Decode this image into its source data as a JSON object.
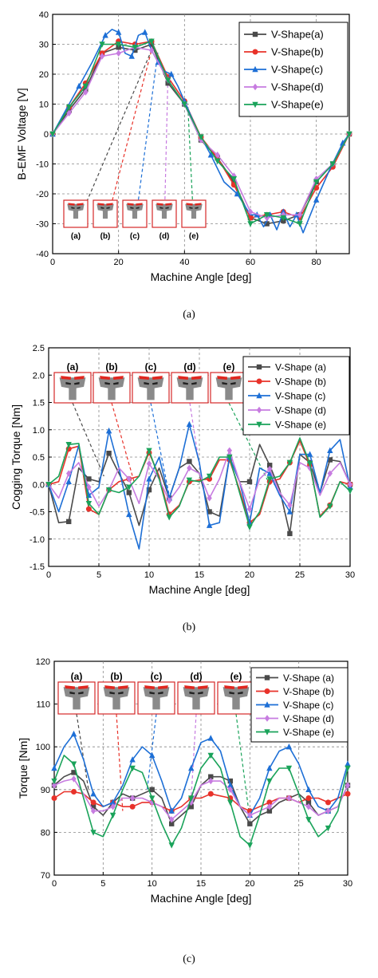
{
  "colors": {
    "a": "#4a4a4a",
    "b": "#e8322a",
    "c": "#1d6fd6",
    "d": "#c77ce0",
    "e": "#1aa35a",
    "inset_border": "#d62828",
    "rotor": "#8a8a8a",
    "magnet": "#e0261f"
  },
  "chart_data": [
    {
      "type": "line",
      "caption": "(a)",
      "xlabel": "Machine Angle [deg]",
      "ylabel": "B-EMF Voltage [V]",
      "xlim": [
        0,
        90
      ],
      "ylim": [
        -40,
        40
      ],
      "xticks": [
        0,
        20,
        40,
        60,
        80
      ],
      "yticks": [
        -40,
        -30,
        -20,
        -10,
        0,
        10,
        20,
        30,
        40
      ],
      "grid": true,
      "legend_position": "top-right",
      "legend": [
        "V-Shape(a)",
        "V-Shape(b)",
        "V-Shape(c)",
        "V-Shape(d)",
        "V-Shape(e)"
      ],
      "inset_labels": [
        "(a)",
        "(b)",
        "(c)",
        "(d)",
        "(e)"
      ],
      "series": [
        {
          "name": "V-Shape(a)",
          "x": [
            0,
            5,
            10,
            15,
            20,
            25,
            30,
            35,
            40,
            45,
            50,
            55,
            60,
            65,
            70,
            75,
            80,
            85,
            90
          ],
          "y": [
            0,
            8,
            15,
            27,
            29,
            28,
            30,
            17,
            10,
            -2,
            -8,
            -16,
            -28,
            -30,
            -29,
            -27,
            -16,
            -10,
            0
          ]
        },
        {
          "name": "V-Shape(b)",
          "x": [
            0,
            5,
            10,
            15,
            20,
            25,
            30,
            35,
            40,
            45,
            50,
            55,
            60,
            65,
            70,
            75,
            80,
            85,
            90
          ],
          "y": [
            0,
            9,
            17,
            27,
            31,
            30,
            31,
            19,
            11,
            -1,
            -8,
            -17,
            -28,
            -27,
            -26,
            -28,
            -18,
            -11,
            0
          ]
        },
        {
          "name": "V-Shape(c)",
          "x": [
            0,
            4,
            8,
            12,
            16,
            18,
            20,
            22,
            24,
            26,
            28,
            30,
            32,
            34,
            36,
            38,
            40,
            44,
            48,
            52,
            56,
            60,
            62,
            64,
            66,
            68,
            70,
            72,
            74,
            76,
            80,
            84,
            88,
            90
          ],
          "y": [
            0,
            8,
            16,
            24,
            33,
            35,
            34,
            27,
            26,
            33,
            34,
            28,
            24,
            21,
            20,
            16,
            11,
            1,
            -7,
            -16,
            -20,
            -27,
            -27,
            -31,
            -27,
            -32,
            -26,
            -31,
            -27,
            -33,
            -22,
            -12,
            -3,
            0
          ]
        },
        {
          "name": "V-Shape(d)",
          "x": [
            0,
            5,
            10,
            15,
            20,
            25,
            30,
            35,
            40,
            45,
            50,
            55,
            60,
            65,
            70,
            75,
            80,
            85,
            90
          ],
          "y": [
            0,
            7,
            14,
            26,
            27,
            29,
            28,
            18,
            10,
            -2,
            -7,
            -14,
            -26,
            -28,
            -27,
            -27,
            -15,
            -10,
            0
          ]
        },
        {
          "name": "V-Shape(e)",
          "x": [
            0,
            5,
            10,
            15,
            20,
            25,
            30,
            35,
            40,
            45,
            50,
            55,
            60,
            65,
            70,
            75,
            80,
            85,
            90
          ],
          "y": [
            0,
            9,
            16,
            30,
            30,
            29,
            31,
            18,
            10,
            -1,
            -9,
            -15,
            -30,
            -27,
            -28,
            -30,
            -16,
            -10,
            0
          ]
        }
      ]
    },
    {
      "type": "line",
      "caption": "(b)",
      "xlabel": "Machine Angle [deg]",
      "ylabel": "Cogging Torque [Nm]",
      "xlim": [
        0,
        30
      ],
      "ylim": [
        -1.5,
        2.5
      ],
      "xticks": [
        0,
        5,
        10,
        15,
        20,
        25,
        30
      ],
      "yticks": [
        -1.5,
        -1.0,
        -0.5,
        0.0,
        0.5,
        1.0,
        1.5,
        2.0,
        2.5
      ],
      "grid": true,
      "legend_position": "right",
      "legend": [
        "V-Shape (a)",
        "V-Shape (b)",
        "V-Shape (c)",
        "V-Shape (d)",
        "V-Shape (e)"
      ],
      "inset_labels": [
        "(a)",
        "(b)",
        "(c)",
        "(d)",
        "(e)"
      ],
      "series": [
        {
          "name": "V-Shape (a)",
          "x": [
            0,
            1,
            2,
            3,
            4,
            5,
            6,
            7,
            8,
            9,
            10,
            11,
            12,
            13,
            14,
            15,
            16,
            17,
            18,
            19,
            20,
            21,
            22,
            23,
            24,
            25,
            26,
            27,
            28,
            29,
            30
          ],
          "y": [
            0,
            -0.7,
            -0.68,
            0.3,
            0.1,
            0.05,
            0.57,
            0.2,
            -0.15,
            -0.75,
            -0.1,
            0.3,
            -0.25,
            0.3,
            0.42,
            0.2,
            -0.5,
            -0.58,
            0.5,
            0.05,
            0.05,
            0.73,
            0.35,
            -0.1,
            -0.9,
            0.55,
            0.4,
            -0.15,
            0.45,
            0.42,
            0
          ]
        },
        {
          "name": "V-Shape (b)",
          "x": [
            0,
            1,
            2,
            3,
            4,
            5,
            6,
            7,
            8,
            9,
            10,
            11,
            12,
            13,
            14,
            15,
            16,
            17,
            18,
            19,
            20,
            21,
            22,
            23,
            24,
            25,
            26,
            27,
            28,
            29,
            30
          ],
          "y": [
            0,
            0.05,
            0.65,
            0.7,
            -0.45,
            -0.55,
            -0.1,
            0.05,
            0.1,
            0.15,
            0.58,
            0.15,
            -0.55,
            -0.38,
            0.05,
            0.08,
            0.1,
            0.45,
            0.45,
            -0.1,
            -0.7,
            -0.55,
            0.05,
            0.1,
            0.4,
            0.8,
            0.35,
            -0.58,
            -0.38,
            0.05,
            0
          ]
        },
        {
          "name": "V-Shape (c)",
          "x": [
            0,
            1,
            2,
            3,
            4,
            5,
            6,
            7,
            8,
            9,
            10,
            11,
            12,
            13,
            14,
            15,
            16,
            17,
            18,
            19,
            20,
            21,
            22,
            23,
            24,
            25,
            26,
            27,
            28,
            29,
            30
          ],
          "y": [
            0,
            -0.5,
            0.05,
            0.72,
            -0.2,
            -0.05,
            0.98,
            0.3,
            -0.55,
            -1.18,
            0.1,
            0.5,
            -0.25,
            0.3,
            1.1,
            0.4,
            -0.75,
            -0.7,
            0.5,
            0.05,
            -0.7,
            0.3,
            0.2,
            -0.2,
            -0.5,
            0.55,
            0.55,
            -0.15,
            0.62,
            0.82,
            -0.05
          ]
        },
        {
          "name": "V-Shape (d)",
          "x": [
            0,
            1,
            2,
            3,
            4,
            5,
            6,
            7,
            8,
            9,
            10,
            11,
            12,
            13,
            14,
            15,
            16,
            17,
            18,
            19,
            20,
            21,
            22,
            23,
            24,
            25,
            26,
            27,
            28,
            29,
            30
          ],
          "y": [
            0,
            -0.25,
            0.2,
            0.4,
            -0.05,
            -0.4,
            -0.1,
            0.3,
            0.1,
            -0.35,
            0.38,
            0.1,
            -0.3,
            -0.05,
            0.3,
            0.2,
            -0.25,
            0.1,
            0.62,
            0.05,
            -0.45,
            0.1,
            0.28,
            -0.15,
            -0.38,
            0.4,
            0.3,
            -0.2,
            0.2,
            0.4,
            0
          ]
        },
        {
          "name": "V-Shape (e)",
          "x": [
            0,
            1,
            2,
            3,
            4,
            5,
            6,
            7,
            8,
            9,
            10,
            11,
            12,
            13,
            14,
            15,
            16,
            17,
            18,
            19,
            20,
            21,
            22,
            23,
            24,
            25,
            26,
            27,
            28,
            29,
            30
          ],
          "y": [
            0,
            0.15,
            0.73,
            0.75,
            -0.35,
            -0.55,
            -0.1,
            -0.15,
            -0.05,
            0.15,
            0.62,
            0.1,
            -0.6,
            -0.4,
            0.08,
            0.05,
            0.15,
            0.5,
            0.5,
            -0.15,
            -0.78,
            -0.5,
            0.1,
            0.15,
            0.4,
            0.85,
            0.38,
            -0.6,
            -0.4,
            0.05,
            -0.12
          ]
        }
      ]
    },
    {
      "type": "line",
      "caption": "(c)",
      "xlabel": "Machine Angle [deg]",
      "ylabel": "Torque [Nm]",
      "xlim": [
        0,
        30
      ],
      "ylim": [
        70,
        120
      ],
      "xticks": [
        0,
        5,
        10,
        15,
        20,
        25,
        30
      ],
      "yticks": [
        70,
        80,
        90,
        100,
        110,
        120
      ],
      "grid": true,
      "legend_position": "right",
      "legend": [
        "V-Shape (a)",
        "V-Shape (b)",
        "V-Shape (c)",
        "V-Shape (d)",
        "V-Shape (e)"
      ],
      "inset_labels": [
        "(a)",
        "(b)",
        "(c)",
        "(d)",
        "(e)"
      ],
      "series": [
        {
          "name": "V-Shape (a)",
          "x": [
            0,
            1,
            2,
            3,
            4,
            5,
            6,
            7,
            8,
            9,
            10,
            11,
            12,
            13,
            14,
            15,
            16,
            17,
            18,
            19,
            20,
            21,
            22,
            23,
            24,
            25,
            26,
            27,
            28,
            29,
            30
          ],
          "y": [
            91,
            93,
            94,
            92,
            86,
            84,
            87,
            89,
            88,
            89,
            90,
            88,
            82,
            84,
            86,
            91,
            93,
            93,
            92,
            86,
            82,
            84,
            85,
            87,
            88,
            89,
            87,
            84,
            85,
            86,
            91
          ]
        },
        {
          "name": "V-Shape (b)",
          "x": [
            0,
            1,
            2,
            3,
            4,
            5,
            6,
            7,
            8,
            9,
            10,
            11,
            12,
            13,
            14,
            15,
            16,
            17,
            18,
            19,
            20,
            21,
            22,
            23,
            24,
            25,
            26,
            27,
            28,
            29,
            30
          ],
          "y": [
            88,
            89.5,
            89.5,
            89,
            87,
            86,
            87,
            86,
            86,
            87,
            87,
            86,
            85,
            86,
            88,
            88,
            89,
            88.5,
            88,
            86,
            85,
            86,
            87,
            88,
            88,
            87,
            88,
            88,
            87,
            88,
            89
          ]
        },
        {
          "name": "V-Shape (c)",
          "x": [
            0,
            1,
            2,
            3,
            4,
            5,
            6,
            7,
            8,
            9,
            10,
            11,
            12,
            13,
            14,
            15,
            16,
            17,
            18,
            19,
            20,
            21,
            22,
            23,
            24,
            25,
            26,
            27,
            28,
            29,
            30
          ],
          "y": [
            95,
            100,
            103,
            97,
            89,
            86,
            87,
            91,
            97,
            100,
            98,
            92,
            85,
            88,
            95,
            101,
            102,
            99,
            91,
            86,
            84,
            88,
            95,
            99,
            100,
            96,
            90,
            86,
            85,
            88,
            96
          ]
        },
        {
          "name": "V-Shape (d)",
          "x": [
            0,
            1,
            2,
            3,
            4,
            5,
            6,
            7,
            8,
            9,
            10,
            11,
            12,
            13,
            14,
            15,
            16,
            17,
            18,
            19,
            20,
            21,
            22,
            23,
            24,
            25,
            26,
            27,
            28,
            29,
            30
          ],
          "y": [
            91,
            92,
            92.5,
            89,
            85,
            85,
            86,
            88,
            88,
            88,
            87,
            86,
            83,
            85,
            87,
            91,
            92,
            92,
            90,
            86,
            84,
            85,
            86,
            88,
            88,
            87,
            86,
            84,
            85,
            86,
            91
          ]
        },
        {
          "name": "V-Shape (e)",
          "x": [
            0,
            1,
            2,
            3,
            4,
            5,
            6,
            7,
            8,
            9,
            10,
            11,
            12,
            13,
            14,
            15,
            16,
            17,
            18,
            19,
            20,
            21,
            22,
            23,
            24,
            25,
            26,
            27,
            28,
            29,
            30
          ],
          "y": [
            92,
            98,
            96,
            88,
            80,
            79,
            84,
            90,
            95,
            94,
            88,
            82,
            77,
            81,
            88,
            95,
            98,
            95,
            87,
            79,
            77,
            84,
            92,
            95,
            95,
            89,
            83,
            79,
            81,
            85,
            95
          ]
        }
      ]
    }
  ]
}
